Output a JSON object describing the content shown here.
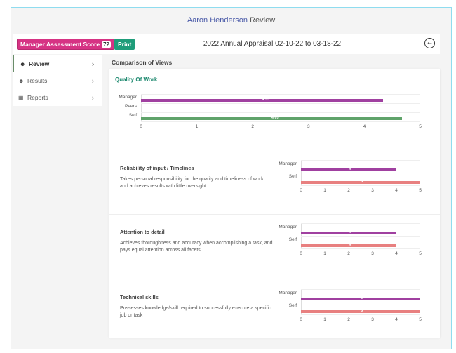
{
  "page": {
    "title_name": "Aaron Henderson",
    "title_suffix": "Review"
  },
  "topbar": {
    "score_label": "Manager Assessment Score",
    "score_value": "72",
    "print_label": "Print",
    "appraisal": "2022 Annual Appraisal  02-10-22 to 03-18-22",
    "back_icon": "arrow-left-circle-icon"
  },
  "sidebar": {
    "items": [
      {
        "label": "Review",
        "icon": "users-icon",
        "active": true
      },
      {
        "label": "Results",
        "icon": "users-icon"
      },
      {
        "label": "Reports",
        "icon": "table-icon"
      }
    ]
  },
  "main": {
    "heading": "Comparison of Views"
  },
  "colors": {
    "manager": "#a040a0",
    "self_quality": "#5fa36a",
    "self": "#e88080",
    "accent": "#1f9d7a",
    "score": "#d63384"
  },
  "chart_data": [
    {
      "type": "bar",
      "orientation": "horizontal",
      "title": "Quality Of Work",
      "categories": [
        "Manager",
        "Peers",
        "Self"
      ],
      "values": [
        4.33,
        null,
        4.67
      ],
      "data_labels": [
        "4.33",
        "",
        "4.67"
      ],
      "xlim": [
        0,
        5
      ],
      "ticks": [
        "0",
        "1",
        "2",
        "3",
        "4",
        "5"
      ]
    },
    {
      "type": "bar",
      "orientation": "horizontal",
      "title": "Reliability of input / Timelines",
      "description": "Takes personal responsibility for the quality and timeliness of work, and achieves results with little oversight",
      "categories": [
        "Manager",
        "Self"
      ],
      "values": [
        4,
        5
      ],
      "data_labels": [
        "4",
        "5"
      ],
      "xlim": [
        0,
        5
      ],
      "ticks": [
        "0",
        "1",
        "2",
        "3",
        "4",
        "5"
      ]
    },
    {
      "type": "bar",
      "orientation": "horizontal",
      "title": "Attention to detail",
      "description": "Achieves thoroughness and accuracy when accomplishing a task, and pays equal attention across all facets",
      "categories": [
        "Manager",
        "Self"
      ],
      "values": [
        4,
        4
      ],
      "data_labels": [
        "4",
        "4"
      ],
      "xlim": [
        0,
        5
      ],
      "ticks": [
        "0",
        "1",
        "2",
        "3",
        "4",
        "5"
      ]
    },
    {
      "type": "bar",
      "orientation": "horizontal",
      "title": "Technical skills",
      "description": "Possesses knowledge/skill  required to successfully execute a specific job or task",
      "categories": [
        "Manager",
        "Self"
      ],
      "values": [
        5,
        5
      ],
      "data_labels": [
        "5",
        "5"
      ],
      "xlim": [
        0,
        5
      ],
      "ticks": [
        "0",
        "1",
        "2",
        "3",
        "4",
        "5"
      ]
    }
  ]
}
